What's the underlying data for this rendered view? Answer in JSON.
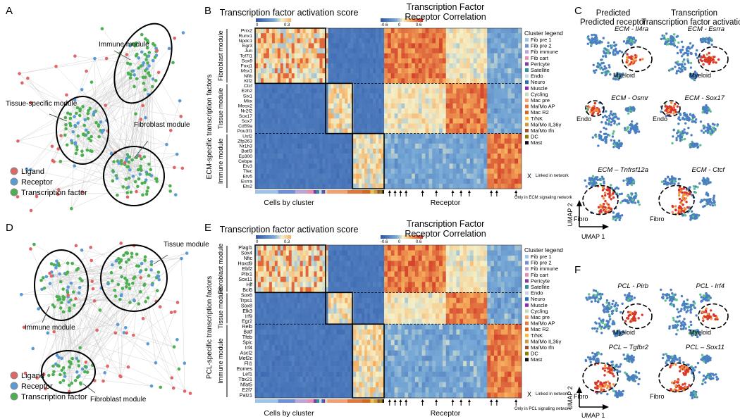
{
  "panel_letters": [
    "A",
    "B",
    "C",
    "D",
    "E",
    "F"
  ],
  "network_legend": [
    "Ligand",
    "Receptor",
    "Transcription factor"
  ],
  "colors": {
    "ligand": "#e06666",
    "receptor": "#5b9bd5",
    "tf": "#4caf50",
    "heat_low": "#3b6fb6",
    "heat_high": "#d62f1f"
  },
  "panelA": {
    "modules": [
      "Immune module",
      "Tissue-specific module",
      "Fibroblast module"
    ]
  },
  "panelD": {
    "modules": [
      "Tissue module",
      "Immune module",
      "Fibroblast module"
    ]
  },
  "panelB": {
    "title_left": "Transcription factor activation score",
    "title_right_1": "Transcription Factor",
    "title_right_2": "Receptor Correlation",
    "scale_left": [
      "0",
      "0.3"
    ],
    "scale_right": [
      "-0.6",
      "0",
      "0.6"
    ],
    "ylabel": "ECM-specific transcription factors",
    "groups": [
      {
        "label": "Fibroblast module",
        "genes": [
          "Prrx2",
          "Runx1",
          "Npdc1",
          "Egr3",
          "Jun",
          "Tcf7l1",
          "Sox9",
          "Foxj1",
          "Msx1",
          "Nfib",
          "Klf2"
        ]
      },
      {
        "label": "Tissue module",
        "genes": [
          "Ctcf",
          "Ezh2",
          "Six1",
          "Mkx",
          "Meox2",
          "Nr2f2",
          "Sox17",
          "Sox7",
          "Cd59a",
          "Pou3f1"
        ]
      },
      {
        "label": "Immune module",
        "genes": [
          "Usf2",
          "Zfp263",
          "Nr1h3",
          "Batf3",
          "Ep300",
          "Cebpe",
          "Etv3",
          "Tfec",
          "Etv5",
          "Esrra",
          "Ets2"
        ]
      }
    ],
    "xlabel_left": "Cells by cluster",
    "xlabel_right": "Receptor",
    "note_x": "X",
    "note_linked": "Linked in network",
    "note_only": "Only in ECM signaling network"
  },
  "panelE": {
    "title_left": "Transcription factor activation score",
    "title_right_1": "Transcription Factor",
    "title_right_2": "Receptor Correlation",
    "scale_left": [
      "0",
      "0.3"
    ],
    "scale_right": [
      "-0.6",
      "0",
      "0.6"
    ],
    "ylabel": "PCL-specific transcription factors",
    "groups": [
      {
        "label": "Fibroblast module",
        "genes": [
          "Plagl1",
          "Sox4",
          "Nfic",
          "Hoxd9",
          "Ebf2",
          "Pitx1",
          "Sox11",
          "Hlf",
          "Bcl6"
        ]
      },
      {
        "label": "Tissue module",
        "genes": [
          "Sox6",
          "Trps1",
          "Sox8",
          "Elk3",
          "Irf9",
          "Egr2"
        ]
      },
      {
        "label": "Immune module",
        "genes": [
          "Relb",
          "Batf",
          "Tfeb",
          "Spic",
          "Irf4",
          "Ascl2",
          "Mef2c",
          "Fli1",
          "Eomes",
          "Lef1",
          "Tbx21",
          "Nfat5",
          "E2f7",
          "Patz1"
        ]
      }
    ],
    "xlabel_left": "Cells by cluster",
    "xlabel_right": "Receptor",
    "note_x": "X",
    "note_linked": "Linked in network",
    "note_only": "Only in PCL signaling network"
  },
  "cluster_legend": {
    "title": "Cluster legend",
    "items": [
      {
        "name": "Fib pre 1",
        "color": "#9ec3ea"
      },
      {
        "name": "Fib pre 2",
        "color": "#6f8fd8"
      },
      {
        "name": "Fib immune",
        "color": "#b9a6d6"
      },
      {
        "name": "Fib cart",
        "color": "#e58fb0"
      },
      {
        "name": "Pericyte",
        "color": "#7b3fa6"
      },
      {
        "name": "Satellite",
        "color": "#2e8fa0"
      },
      {
        "name": "Endo",
        "color": "#c8d6e8"
      },
      {
        "name": "Neuro",
        "color": "#2a6fb5"
      },
      {
        "name": "Muscle",
        "color": "#8e2aa8"
      },
      {
        "name": "Cycling",
        "color": "#c7d9b8"
      },
      {
        "name": "Mac pre",
        "color": "#f2a072"
      },
      {
        "name": "Ma/Mo AP",
        "color": "#e0783c"
      },
      {
        "name": "Mac R2",
        "color": "#d2691e"
      },
      {
        "name": "T/NK",
        "color": "#f0c040"
      },
      {
        "name": "Ma/Mo IL36γ",
        "color": "#c89b3c"
      },
      {
        "name": "Ma/Mo Ifn",
        "color": "#a0522d"
      },
      {
        "name": "DC",
        "color": "#8b8000"
      },
      {
        "name": "Mast",
        "color": "#111111"
      }
    ]
  },
  "panelC": {
    "col_header_1": "Predicted receptor",
    "col_header_2": "Transcription factor activation",
    "maps": [
      {
        "title": "ECM - Il4ra",
        "label": "Myeloid"
      },
      {
        "title": "ECM - Esrra",
        "label": "Myeloid"
      },
      {
        "title": "ECM - Osmr",
        "label": "Endo"
      },
      {
        "title": "ECM - Sox17",
        "label": "Endo"
      },
      {
        "title": "ECM – Tnfrsf12a",
        "label": "Fibro"
      },
      {
        "title": "ECM - Ctcf",
        "label": "Fibro"
      }
    ],
    "umap1": "UMAP 1",
    "umap2": "UMAP 2"
  },
  "panelF": {
    "maps": [
      {
        "title": "PCL - Pirb",
        "label": "Myeloid"
      },
      {
        "title": "PCL - Irf4",
        "label": "Myeloid"
      },
      {
        "title": "PCL – Tgfbr2",
        "label": "Fibro"
      },
      {
        "title": "PCL – Sox11",
        "label": "Fibro"
      }
    ],
    "umap1": "UMAP 1",
    "umap2": "UMAP 2"
  }
}
